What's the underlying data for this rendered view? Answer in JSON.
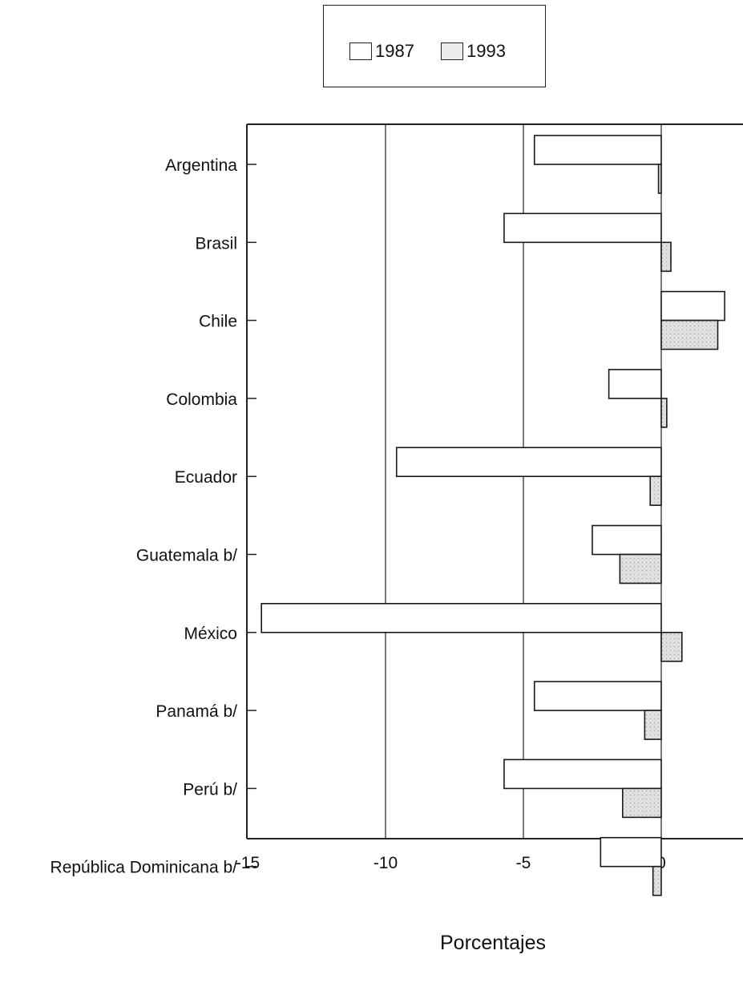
{
  "chart_data": {
    "type": "bar",
    "orientation": "horizontal",
    "categories": [
      "Argentina",
      "Brasil",
      "Chile",
      "Colombia",
      "Ecuador",
      "Guatemala b/",
      "México",
      "Panamá b/",
      "Perú b/",
      "República Dominicana b/"
    ],
    "series": [
      {
        "name": "1987",
        "values": [
          -4.6,
          -5.7,
          2.3,
          -1.9,
          -9.6,
          -2.5,
          -14.5,
          -4.6,
          -5.7,
          -2.2
        ],
        "color": "#ffffff"
      },
      {
        "name": "1993",
        "values": [
          -0.1,
          0.35,
          2.05,
          0.2,
          -0.4,
          -1.5,
          0.75,
          -0.6,
          -1.4,
          -0.3
        ],
        "color": "#d9d9d9"
      }
    ],
    "xlabel": "Porcentajes",
    "ylabel": "",
    "xlim": [
      -15,
      3
    ],
    "xticks": [
      -15,
      -10,
      -5,
      0
    ],
    "xtick_labels": [
      "-15",
      "-10",
      "-5",
      "0"
    ],
    "grid": "vertical",
    "legend_position": "top-center"
  }
}
